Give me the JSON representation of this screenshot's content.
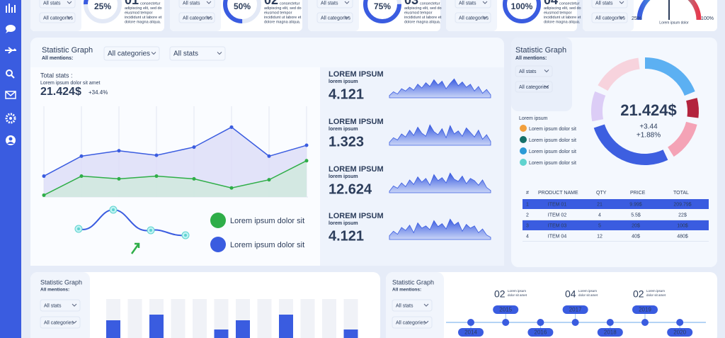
{
  "top_cards": {
    "values": [
      25,
      50,
      75,
      100
    ],
    "value_labels": [
      "25%",
      "50%",
      "75%",
      "100%"
    ],
    "numbers": [
      "01",
      "02",
      "03",
      "04"
    ],
    "description_lines": [
      "consectetur",
      "adipiscing elit, sed do",
      "eiusmod tempor",
      "incididunt ut labore et",
      "dolore magna aliqua."
    ],
    "dropdowns": [
      "All stats",
      "All categories"
    ],
    "gauge": {
      "min_label": "25%",
      "max_label": "100%",
      "caption": "Lorem ipsum dolor"
    }
  },
  "main_panel": {
    "title": "Statistic Graph",
    "subtitle": "All mentions:",
    "dropdowns": [
      "All categories",
      "All stats"
    ],
    "total": {
      "label": "Total stats :",
      "caption": "Lorem ipsum dolor sit amet",
      "value": "21.424$",
      "change": "+34.4%"
    },
    "line_chart": {
      "type": "line",
      "ylim": [
        0,
        100
      ],
      "series": [
        {
          "name": "Lorem ipsum dolor sit",
          "color": "#2fae48",
          "values": [
            2,
            23,
            20,
            23,
            20,
            10,
            19,
            40
          ]
        },
        {
          "name": "Lorem ipsum dolor sit",
          "color": "#3a5ce0",
          "values": [
            23,
            45,
            51,
            46,
            55,
            77,
            45,
            57
          ]
        }
      ]
    },
    "stats": [
      {
        "title": "LOREM IPSUM",
        "subtitle": "lorem ipsum",
        "value": "4.121",
        "sparkline": [
          3,
          8,
          5,
          12,
          9,
          14,
          10,
          18,
          13,
          20,
          15,
          24,
          17,
          22,
          12,
          19,
          25,
          16,
          21,
          14,
          18,
          9,
          15,
          6,
          11,
          4
        ]
      },
      {
        "title": "LOREM IPSUM",
        "subtitle": "lorem ipsum",
        "value": "1.323",
        "sparkline": [
          4,
          10,
          7,
          15,
          11,
          20,
          13,
          24,
          16,
          12,
          27,
          18,
          14,
          22,
          10,
          26,
          15,
          19,
          12,
          23,
          17,
          11,
          20,
          8,
          14,
          5
        ]
      },
      {
        "title": "LOREM IPSUM",
        "subtitle": "lorem ipsum",
        "value": "12.624",
        "sparkline": [
          2,
          9,
          6,
          13,
          8,
          17,
          11,
          21,
          14,
          19,
          10,
          24,
          16,
          20,
          13,
          26,
          18,
          15,
          22,
          12,
          19,
          16,
          10,
          17,
          7,
          3
        ]
      },
      {
        "title": "LOREM IPSUM",
        "subtitle": "lorem ipsum",
        "value": "4.121",
        "sparkline": [
          5,
          11,
          7,
          16,
          12,
          19,
          9,
          22,
          15,
          18,
          13,
          25,
          17,
          21,
          14,
          27,
          19,
          23,
          11,
          20,
          15,
          18,
          9,
          14,
          6,
          3
        ]
      }
    ]
  },
  "side_panel": {
    "title": "Statistic Graph",
    "subtitle": "All mentions:",
    "dropdowns": [
      "All stats",
      "All categories"
    ],
    "legend_title": "Lorem ipsum",
    "legend": [
      {
        "label": "Lorem ipsum  dolor sit",
        "color": "#f2a03d"
      },
      {
        "label": "Lorem ipsum  dolor sit",
        "color": "#14706a"
      },
      {
        "label": "Lorem ipsum  dolor sit",
        "color": "#2b9ad6"
      },
      {
        "label": "Lorem ipsum  dolor sit",
        "color": "#5fd3cf"
      }
    ],
    "donut": {
      "type": "pie",
      "values": [
        19,
        6,
        12,
        27,
        9,
        15
      ],
      "colors": [
        "#5cb0f2",
        "#b3243d",
        "#f4a3b6",
        "#3d5fe0",
        "#dccdf6",
        "#f7d3dd"
      ],
      "total": "21.424$",
      "changes": [
        "+3.44",
        "+1.88%"
      ]
    },
    "table": {
      "headers": [
        "#",
        "PRODUCT NAME",
        "QTY",
        "PRICE",
        "TOTAL"
      ],
      "rows": [
        [
          "1",
          "ITEM 01",
          "21",
          "9.99$",
          "209.79$"
        ],
        [
          "2",
          "ITEM 02",
          "4",
          "5.5$",
          "22$"
        ],
        [
          "3",
          "ITEM 03",
          "5",
          "20$",
          "100$"
        ],
        [
          "4",
          "ITEM 04",
          "12",
          "40$",
          "480$"
        ]
      ]
    }
  },
  "bottom_left": {
    "title": "Statistic Graph",
    "subtitle": "All mentions:",
    "dropdowns": [
      "All stats",
      "All categories"
    ],
    "bar_chart": {
      "type": "bar",
      "ylim": [
        0,
        55
      ],
      "color": "#3a5ce0",
      "values": [
        25,
        null,
        33,
        null,
        null,
        12,
        25,
        null,
        33,
        null,
        null,
        12
      ]
    }
  },
  "bottom_right": {
    "title": "Statistic Graph",
    "subtitle": "All mentions:",
    "dropdowns": [
      "All stats",
      "All categories"
    ],
    "timeline": {
      "years": [
        "2014",
        "2015",
        "2016",
        "2017",
        "2018",
        "2019",
        "2020"
      ],
      "highlights": [
        {
          "number": "02",
          "lines": [
            "Lorem ipsum",
            "dolor sit amet"
          ]
        },
        {
          "number": "04",
          "lines": [
            "Lorem ipsum",
            "dolor sit amet"
          ]
        },
        {
          "number": "02",
          "lines": [
            "Lorem ipsum",
            "dolor sit amet"
          ]
        }
      ]
    }
  }
}
